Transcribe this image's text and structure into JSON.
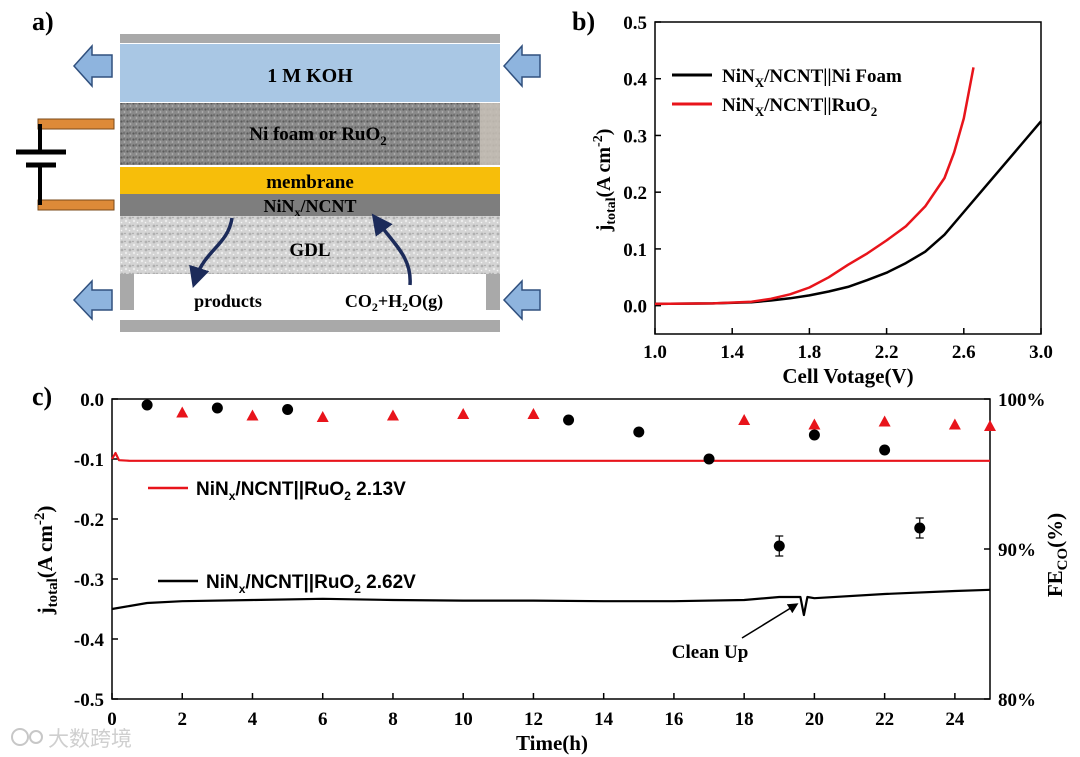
{
  "panel_a": {
    "label": "a)",
    "koh": "1 M KOH",
    "anode": "Ni  foam or RuO",
    "anode_sub": "2",
    "membrane": "membrane",
    "cathode": "NiN",
    "cathode_sub": "x",
    "cathode_suffix": "/NCNT",
    "gdl": "GDL",
    "products": "products",
    "feed_a": "CO",
    "feed_sub1": "2",
    "feed_b": "+H",
    "feed_sub2": "2",
    "feed_c": "O(g)"
  },
  "chart_data": [
    {
      "panel": "b)",
      "type": "line",
      "xlabel": "Cell Votage(V)",
      "ylabel_main": "j",
      "ylabel_sub": "total",
      "ylabel_rest": "(A cm",
      "ylabel_sup": "-2",
      "ylabel_close": ")",
      "xlim": [
        1.0,
        3.0
      ],
      "ylim": [
        -0.05,
        0.5
      ],
      "xticks": [
        "1.0",
        "1.4",
        "1.8",
        "2.2",
        "2.6",
        "3.0"
      ],
      "yticks": [
        "0.0",
        "0.1",
        "0.2",
        "0.3",
        "0.4",
        "0.5"
      ],
      "series": [
        {
          "name_main": "NiN",
          "name_sub": "X",
          "name_rest": "/NCNT||Ni Foam",
          "color": "#000000",
          "x": [
            1.0,
            1.3,
            1.5,
            1.6,
            1.7,
            1.8,
            1.9,
            2.0,
            2.1,
            2.2,
            2.3,
            2.4,
            2.5,
            2.6,
            2.7,
            2.8,
            2.9,
            3.0
          ],
          "y": [
            0.003,
            0.004,
            0.006,
            0.009,
            0.013,
            0.018,
            0.025,
            0.033,
            0.045,
            0.058,
            0.075,
            0.095,
            0.125,
            0.165,
            0.205,
            0.245,
            0.285,
            0.325
          ]
        },
        {
          "name_main": "NiN",
          "name_sub": "X",
          "name_rest": "/NCNT||RuO",
          "name_sub2": "2",
          "color": "#e8141b",
          "x": [
            1.0,
            1.3,
            1.5,
            1.6,
            1.7,
            1.8,
            1.9,
            2.0,
            2.1,
            2.2,
            2.3,
            2.4,
            2.5,
            2.55,
            2.6,
            2.65
          ],
          "y": [
            0.003,
            0.004,
            0.007,
            0.012,
            0.02,
            0.032,
            0.05,
            0.072,
            0.092,
            0.115,
            0.14,
            0.175,
            0.225,
            0.27,
            0.33,
            0.42
          ]
        }
      ]
    },
    {
      "panel": "c)",
      "type": "line+scatter",
      "xlabel": "Time(h)",
      "ylabel_main": "j",
      "ylabel_sub": "total",
      "ylabel_rest": "(A cm",
      "ylabel_sup": "-2",
      "ylabel_close": ")",
      "y2label_main": "FE",
      "y2label_sub": "CO",
      "y2label_rest": "(%)",
      "xlim": [
        0,
        25
      ],
      "ylim": [
        -0.5,
        0.0
      ],
      "y2lim": [
        80,
        100
      ],
      "xticks": [
        "0",
        "2",
        "4",
        "6",
        "8",
        "10",
        "12",
        "14",
        "16",
        "18",
        "20",
        "22",
        "24"
      ],
      "yticks": [
        "0.0",
        "-0.1",
        "-0.2",
        "-0.3",
        "-0.4",
        "-0.5"
      ],
      "y2ticks": [
        "100%",
        "90%",
        "80%"
      ],
      "annotation": "Clean Up",
      "series": [
        {
          "name_main": "NiN",
          "name_sub": "x",
          "name_rest": "/NCNT||RuO",
          "name_sub2": "2",
          "name_volt": " 2.13V",
          "color": "#e8141b",
          "kind": "line",
          "x": [
            0,
            0.1,
            0.2,
            0.5,
            5,
            10,
            15,
            20,
            25
          ],
          "y": [
            -0.1,
            -0.09,
            -0.102,
            -0.103,
            -0.103,
            -0.103,
            -0.103,
            -0.103,
            -0.103
          ]
        },
        {
          "name_main": "NiN",
          "name_sub": "x",
          "name_rest": "/NCNT||RuO",
          "name_sub2": "2",
          "name_volt": "  2.62V",
          "color": "#000000",
          "kind": "line",
          "x": [
            0,
            0.5,
            1,
            2,
            4,
            6,
            8,
            10,
            12,
            14,
            16,
            18,
            19,
            19.6,
            19.7,
            19.8,
            20,
            22,
            24,
            25
          ],
          "y": [
            -0.35,
            -0.345,
            -0.34,
            -0.337,
            -0.335,
            -0.333,
            -0.335,
            -0.336,
            -0.336,
            -0.337,
            -0.337,
            -0.335,
            -0.33,
            -0.33,
            -0.36,
            -0.33,
            -0.332,
            -0.325,
            -0.32,
            -0.318
          ]
        },
        {
          "name": "FE_CO (2.13V)",
          "color": "#e8141b",
          "kind": "triangle",
          "x": [
            2,
            4,
            6,
            8,
            10,
            12,
            18,
            20,
            22,
            24,
            25
          ],
          "y": [
            99.1,
            98.9,
            98.8,
            98.9,
            99.0,
            99.0,
            98.6,
            98.3,
            98.5,
            98.3,
            98.2
          ]
        },
        {
          "name": "FE_CO (2.62V)",
          "color": "#000000",
          "kind": "circle",
          "x": [
            1,
            3,
            5,
            13,
            15,
            17,
            19,
            20,
            22,
            23
          ],
          "y": [
            99.6,
            99.4,
            99.3,
            98.6,
            97.8,
            96.0,
            90.2,
            97.6,
            96.6,
            91.4
          ]
        }
      ]
    }
  ],
  "watermark": "大数跨境"
}
